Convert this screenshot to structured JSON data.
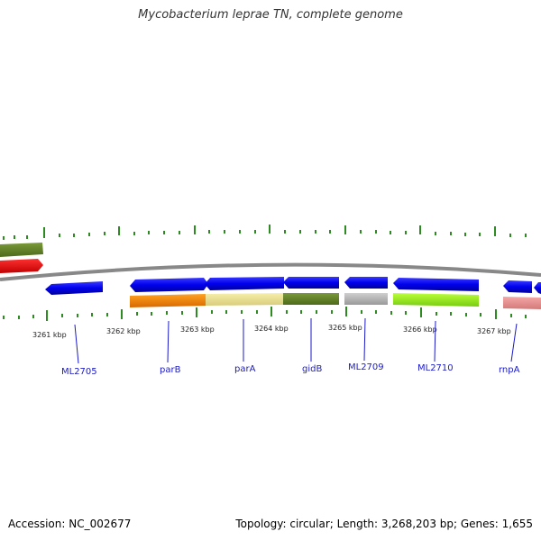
{
  "title": "Mycobacterium leprae TN, complete genome",
  "footer": {
    "accession": "Accession: NC_002677",
    "summary": "Topology: circular; Length: 3,268,203 bp; Genes: 1,655"
  },
  "colors": {
    "backbone": "#888888",
    "forward_cds": "#0000ee",
    "tick": "#2e8b22",
    "label": "#1a1ac8"
  },
  "kbp_labels": [
    "3261 kbp",
    "3262 kbp",
    "3263 kbp",
    "3264 kbp",
    "3265 kbp",
    "3266 kbp",
    "3267 kbp"
  ],
  "gene_labels": [
    "ML2705",
    "parB",
    "parA",
    "gidB",
    "ML2709",
    "ML2710",
    "rnpA"
  ]
}
